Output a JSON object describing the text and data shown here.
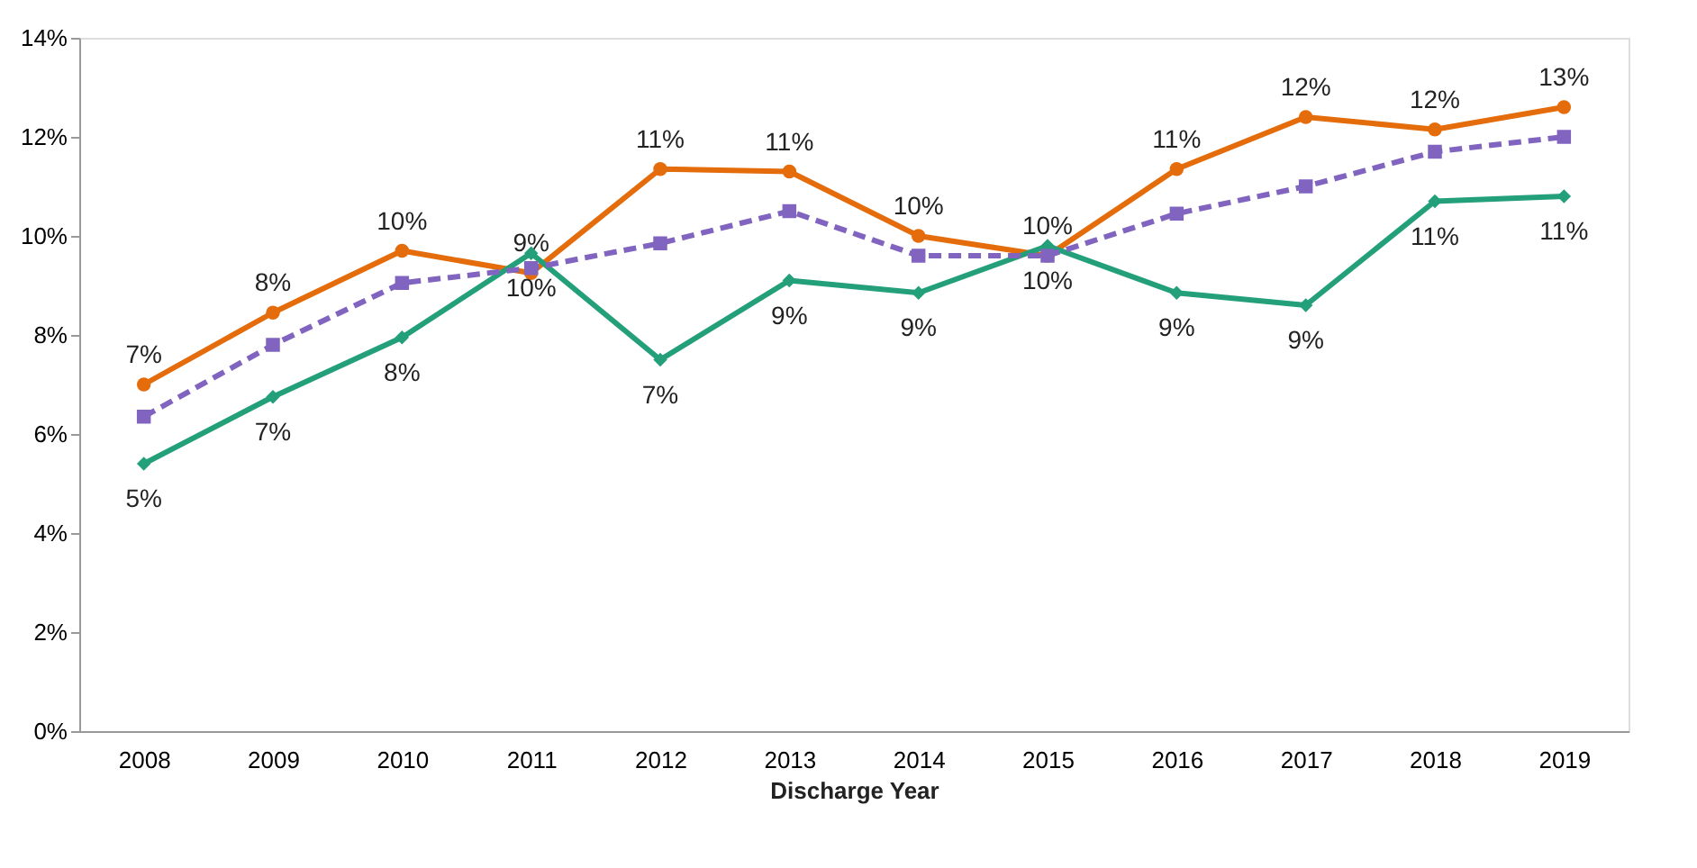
{
  "chart_data": {
    "type": "line",
    "xlabel": "Discharge Year",
    "categories": [
      "2008",
      "2009",
      "2010",
      "2011",
      "2012",
      "2013",
      "2014",
      "2015",
      "2016",
      "2017",
      "2018",
      "2019"
    ],
    "series": [
      {
        "color": "#e46c0a",
        "marker": "circle",
        "line_style": "solid",
        "values": [
          7.0,
          8.45,
          9.7,
          9.25,
          11.35,
          11.3,
          10.0,
          9.6,
          11.35,
          12.4,
          12.15,
          12.6
        ],
        "value_labels": [
          "7%",
          "8%",
          "10%",
          "9%",
          "11%",
          "11%",
          "10%",
          "10%",
          "11%",
          "12%",
          "12%",
          "13%"
        ]
      },
      {
        "color": "#23a07a",
        "marker": "diamond",
        "line_style": "solid",
        "values": [
          5.4,
          6.75,
          7.95,
          9.65,
          7.5,
          9.1,
          8.85,
          9.8,
          8.85,
          8.6,
          10.7,
          10.8
        ],
        "value_labels": [
          "5%",
          "7%",
          "8%",
          "10%",
          "7%",
          "9%",
          "9%",
          "10%",
          "9%",
          "9%",
          "11%",
          "11%"
        ]
      },
      {
        "color": "#8064c0",
        "marker": "square",
        "line_style": "dashed",
        "values": [
          6.35,
          7.8,
          9.05,
          9.35,
          9.85,
          10.5,
          9.6,
          9.6,
          10.45,
          11.0,
          11.7,
          12.0
        ]
      }
    ],
    "ylim": [
      0,
      14
    ],
    "yticks": [
      {
        "value": 0,
        "label": "0%"
      },
      {
        "value": 2,
        "label": "2%"
      },
      {
        "value": 4,
        "label": "4%"
      },
      {
        "value": 6,
        "label": "6%"
      },
      {
        "value": 8,
        "label": "8%"
      },
      {
        "value": 10,
        "label": "10%"
      },
      {
        "value": 12,
        "label": "12%"
      },
      {
        "value": 14,
        "label": "14%"
      }
    ],
    "grid": false
  }
}
